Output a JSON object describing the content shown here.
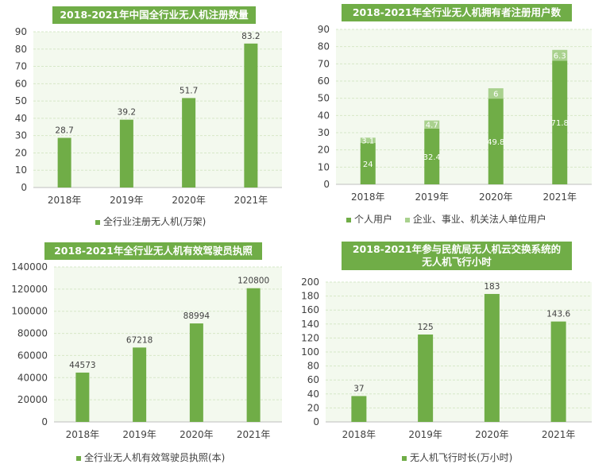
{
  "chart_data": [
    {
      "type": "bar",
      "title": "2018-2021年中国全行业无人机注册数量",
      "categories": [
        "2018年",
        "2019年",
        "2020年",
        "2021年"
      ],
      "series": [
        {
          "name": "全行业注册无人机(万架)",
          "values": [
            28.7,
            39.2,
            51.7,
            83.2
          ],
          "color": "#70ad47"
        }
      ],
      "data_labels": [
        "28.7",
        "39.2",
        "51.7",
        "83.2"
      ],
      "ylim": [
        0,
        90
      ],
      "yticks": [
        0,
        10,
        20,
        30,
        40,
        50,
        60,
        70,
        80,
        90
      ],
      "grid": true,
      "legend": "bottom"
    },
    {
      "type": "bar",
      "stacked": true,
      "title": "2018-2021年全行业无人机拥有者注册用户数",
      "categories": [
        "2018年",
        "2019年",
        "2020年",
        "2021年"
      ],
      "series": [
        {
          "name": "个人用户",
          "values": [
            24,
            32.4,
            49.8,
            71.8
          ],
          "color": "#70ad47"
        },
        {
          "name": "企业、事业、机关法人单位用户",
          "values": [
            3.1,
            4.7,
            6,
            6.3
          ],
          "color": "#a9d18e"
        }
      ],
      "data_labels": [
        [
          "24",
          "32.4",
          "49.8",
          "71.8"
        ],
        [
          "3.1",
          "4.7",
          "6",
          "6.3"
        ]
      ],
      "ylim": [
        0,
        90
      ],
      "yticks": [
        0,
        10,
        20,
        30,
        40,
        50,
        60,
        70,
        80,
        90
      ],
      "grid": true,
      "legend": "bottom"
    },
    {
      "type": "bar",
      "title": "2018-2021年全行业无人机有效驾驶员执照",
      "categories": [
        "2018年",
        "2019年",
        "2020年",
        "2021年"
      ],
      "series": [
        {
          "name": "全行业无人机有效驾驶员执照(本)",
          "values": [
            44573,
            67218,
            88994,
            120800
          ],
          "color": "#70ad47"
        }
      ],
      "data_labels": [
        "44573",
        "67218",
        "88994",
        "120800"
      ],
      "ylim": [
        0,
        140000
      ],
      "yticks": [
        0,
        20000,
        40000,
        60000,
        80000,
        100000,
        120000,
        140000
      ],
      "grid": true,
      "legend": "bottom"
    },
    {
      "type": "bar",
      "title": "2018-2021年参与民航局无人机云交换系统的无人机飞行小时",
      "title_lines": [
        "2018-2021年参与民航局无人机云交换系统的",
        "无人机飞行小时"
      ],
      "categories": [
        "2018年",
        "2019年",
        "2020年",
        "2021年"
      ],
      "series": [
        {
          "name": "无人机飞行时长(万小时)",
          "values": [
            37,
            125,
            183,
            143.6
          ],
          "color": "#70ad47"
        }
      ],
      "data_labels": [
        "37",
        "125",
        "183",
        "143.6"
      ],
      "ylim": [
        0,
        200
      ],
      "yticks": [
        0,
        20,
        40,
        60,
        80,
        100,
        120,
        140,
        160,
        180,
        200
      ],
      "grid": true,
      "legend": "bottom"
    }
  ]
}
